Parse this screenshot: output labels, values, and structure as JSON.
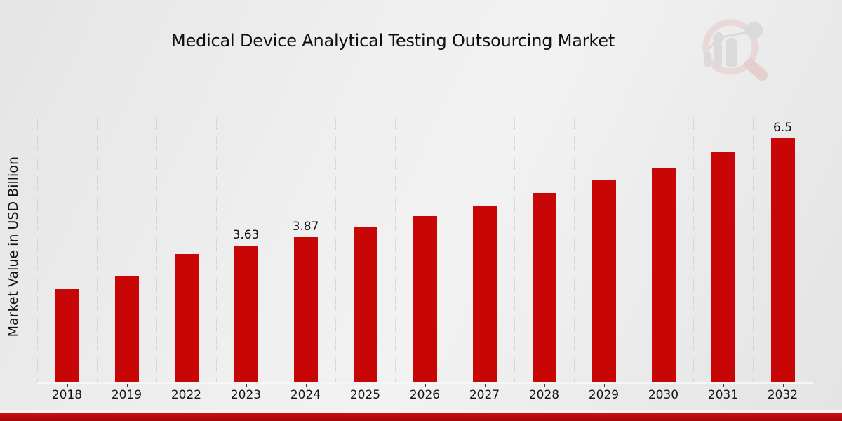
{
  "chart_data": {
    "type": "bar",
    "title": "Medical Device Analytical Testing Outsourcing Market",
    "xlabel": "",
    "ylabel": "Market Value in USD Billion",
    "categories": [
      "2018",
      "2019",
      "2022",
      "2023",
      "2024",
      "2025",
      "2026",
      "2027",
      "2028",
      "2029",
      "2030",
      "2031",
      "2032"
    ],
    "values": [
      2.49,
      2.81,
      3.41,
      3.63,
      3.87,
      4.15,
      4.43,
      4.71,
      5.03,
      5.38,
      5.71,
      6.11,
      6.5
    ],
    "data_labels": [
      "",
      "",
      "",
      "3.63",
      "3.87",
      "",
      "",
      "",
      "",
      "",
      "",
      "",
      "6.5"
    ],
    "ylim": [
      0,
      7.2
    ],
    "grid": "vertical-dotted",
    "legend": "none",
    "bar_color": "#c80606"
  },
  "footer": {
    "band_color_top": "#d01010",
    "band_color_bottom": "#a40909"
  },
  "logo": {
    "name": "magnifier-growth-chart-watermark",
    "ring_color": "#e7c5c5",
    "handle_color": "#e0b2b2",
    "bars_color": "#c9c9c9"
  }
}
